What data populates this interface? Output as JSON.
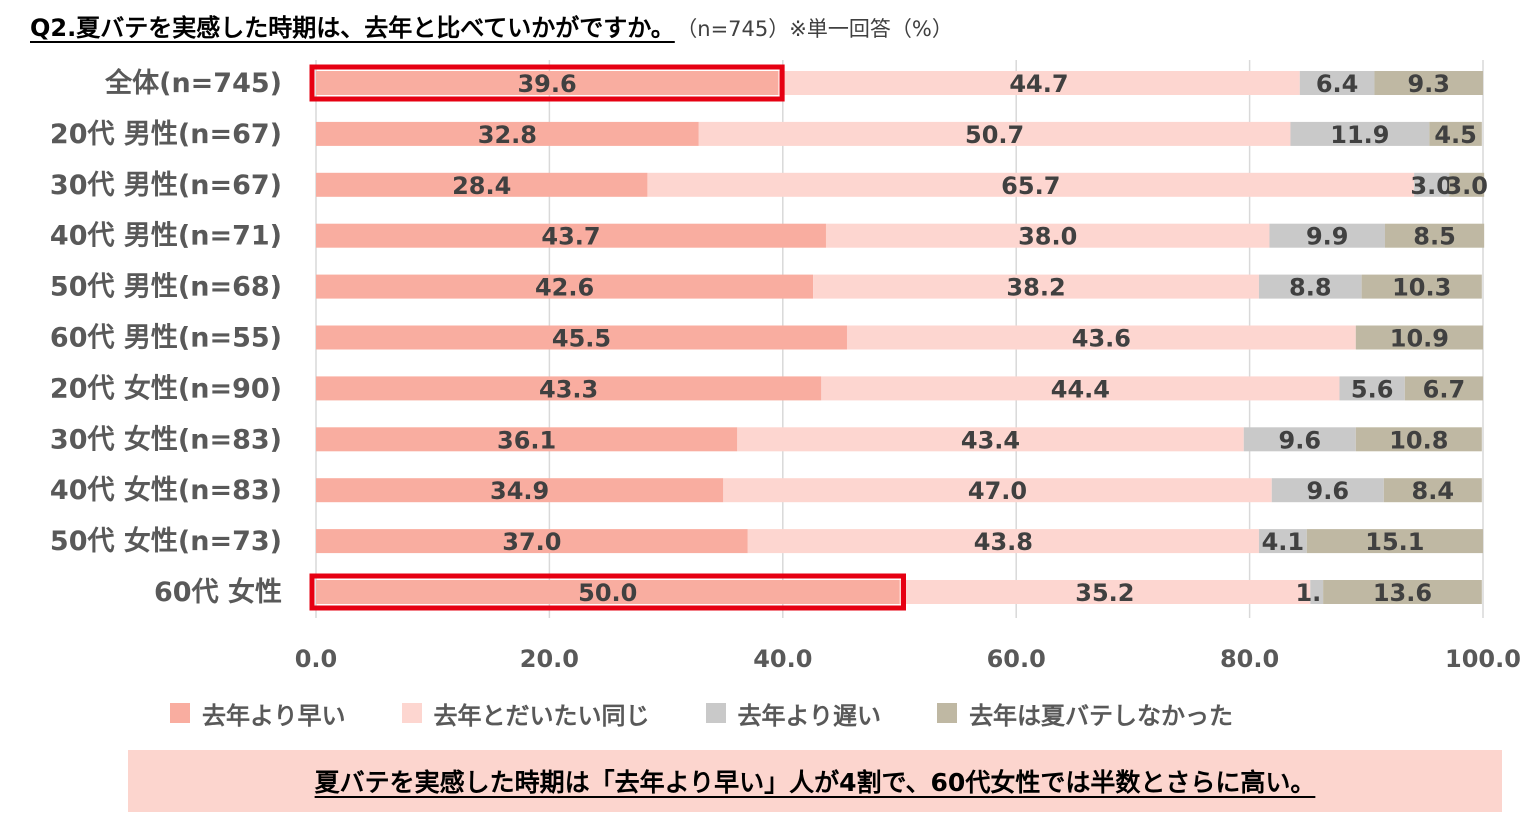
{
  "title": {
    "main": "Q2.夏バテを実感した時期は、去年と比べていかがですか。",
    "sub": "（n=745）※単一回答（%）"
  },
  "conclusion": "夏バテを実感した時期は「去年より早い」人が4割で、60代女性では半数とさらに高い。",
  "colors": {
    "earlier": "#f9ada0",
    "same": "#fdd6d0",
    "later": "#c9c9c9",
    "none": "#bfb8a3",
    "highlight": "#e60012"
  },
  "chart_data": {
    "type": "bar",
    "orientation": "horizontal",
    "stacked": true,
    "categories": [
      "全体(n=745)",
      "20代 男性(n=67)",
      "30代 男性(n=67)",
      "40代 男性(n=71)",
      "50代 男性(n=68)",
      "60代 男性(n=55)",
      "20代 女性(n=90)",
      "30代 女性(n=83)",
      "40代 女性(n=83)",
      "50代 女性(n=73)",
      "60代 女性"
    ],
    "series": [
      {
        "name": "去年より早い",
        "color": "#f9ada0",
        "values": [
          39.6,
          32.8,
          28.4,
          43.7,
          42.6,
          45.5,
          43.3,
          36.1,
          34.9,
          37.0,
          50.0
        ]
      },
      {
        "name": "去年とだいたい同じ",
        "color": "#fdd6d0",
        "values": [
          44.7,
          50.7,
          65.7,
          38.0,
          38.2,
          43.6,
          44.4,
          43.4,
          47.0,
          43.8,
          35.2
        ]
      },
      {
        "name": "去年より遅い",
        "color": "#c9c9c9",
        "values": [
          6.4,
          11.9,
          3.0,
          9.9,
          8.8,
          null,
          5.6,
          9.6,
          9.6,
          4.1,
          1.1
        ]
      },
      {
        "name": "去年は夏バテしなかった",
        "color": "#bfb8a3",
        "values": [
          9.3,
          4.5,
          3.0,
          8.5,
          10.3,
          10.9,
          6.7,
          10.8,
          8.4,
          15.1,
          13.6
        ]
      }
    ],
    "value_labels": [
      [
        "39.6",
        "44.7",
        "6.4",
        "9.3"
      ],
      [
        "32.8",
        "50.7",
        "11.9",
        "4.5"
      ],
      [
        "28.4",
        "65.7",
        "3.0",
        "3.0"
      ],
      [
        "43.7",
        "38.0",
        "9.9",
        "8.5"
      ],
      [
        "42.6",
        "38.2",
        "8.8",
        "10.3"
      ],
      [
        "45.5",
        "43.6",
        "",
        "10.9"
      ],
      [
        "43.3",
        "44.4",
        "5.6",
        "6.7"
      ],
      [
        "36.1",
        "43.4",
        "9.6",
        "10.8"
      ],
      [
        "34.9",
        "47.0",
        "9.6",
        "8.4"
      ],
      [
        "37.0",
        "43.8",
        "4.1",
        "15.1"
      ],
      [
        "50.0",
        "35.2",
        "1.1",
        "13.6"
      ]
    ],
    "x_ticks": [
      "0.0",
      "20.0",
      "40.0",
      "60.0",
      "80.0",
      "100.0"
    ],
    "xlim": [
      0,
      100
    ],
    "grid": "vertical",
    "legend_position": "bottom",
    "highlighted_bars": [
      {
        "category_index": 0,
        "series_index": 0
      },
      {
        "category_index": 10,
        "series_index": 0
      }
    ]
  }
}
